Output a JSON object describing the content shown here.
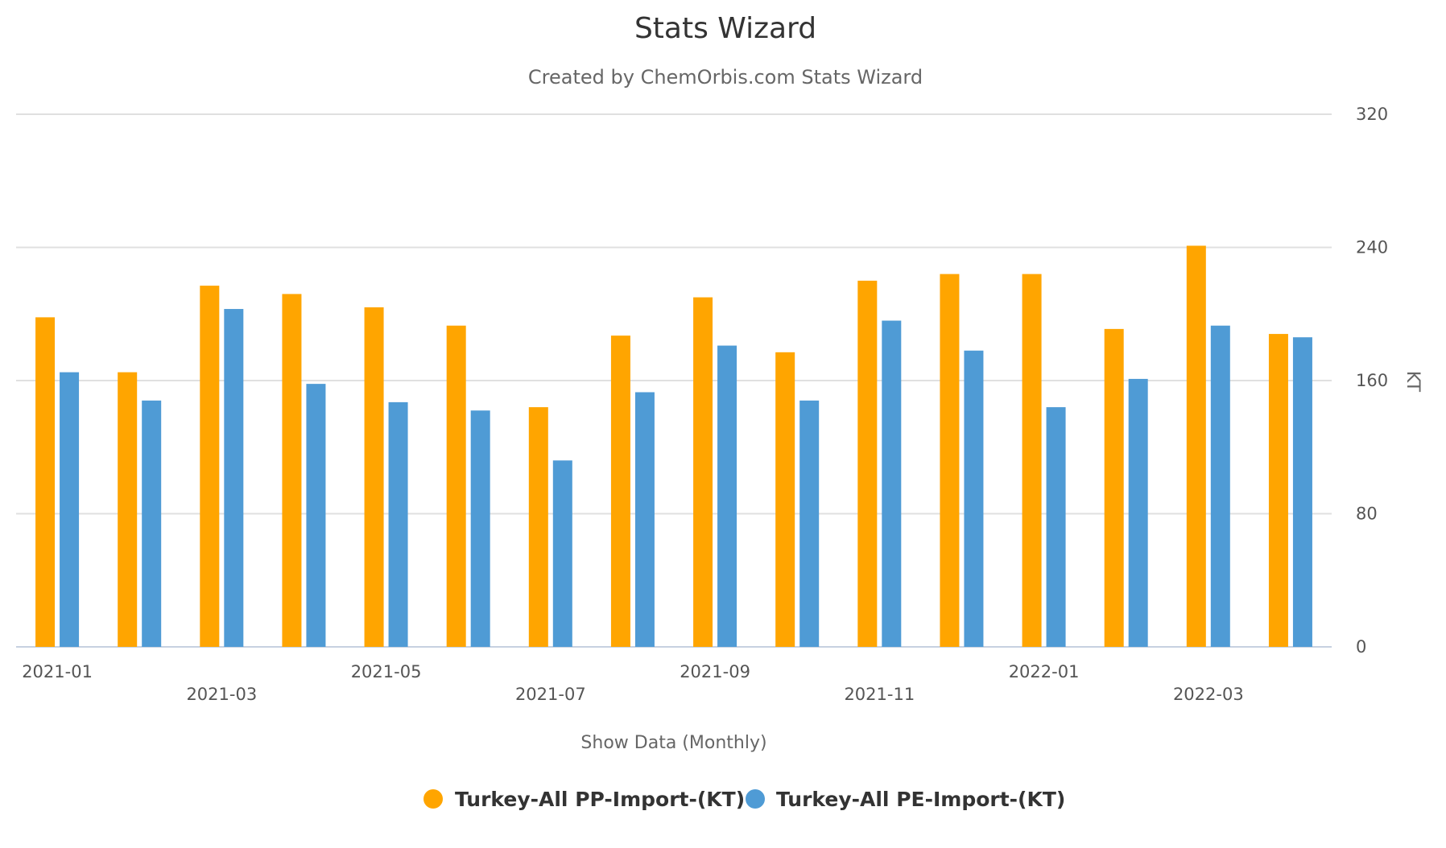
{
  "chart_data": {
    "type": "bar",
    "title": "Stats Wizard",
    "subtitle": "Created by ChemOrbis.com Stats Wizard",
    "xlabel": "Show Data (Monthly)",
    "ylabel": "KT",
    "ylim": [
      0,
      320
    ],
    "yticks": [
      0,
      80,
      160,
      240,
      320
    ],
    "grid": true,
    "legend_position": "bottom-center",
    "categories": [
      "2021-01",
      "2021-02",
      "2021-03",
      "2021-04",
      "2021-05",
      "2021-06",
      "2021-07",
      "2021-08",
      "2021-09",
      "2021-10",
      "2021-11",
      "2021-12",
      "2022-01",
      "2022-02",
      "2022-03",
      "2022-04"
    ],
    "xtick_labels": [
      "2021-01",
      "2021-03",
      "2021-05",
      "2021-07",
      "2021-09",
      "2021-11",
      "2022-01",
      "2022-03"
    ],
    "series": [
      {
        "name": "Turkey-All PP-Import-(KT)",
        "color": "#ffa500",
        "values": [
          198,
          165,
          217,
          212,
          204,
          193,
          144,
          187,
          210,
          177,
          220,
          224,
          224,
          191,
          241,
          188
        ]
      },
      {
        "name": "Turkey-All PE-Import-(KT)",
        "color": "#4f9bd5",
        "values": [
          165,
          148,
          203,
          158,
          147,
          142,
          112,
          153,
          181,
          148,
          196,
          178,
          144,
          161,
          193,
          186
        ]
      }
    ]
  }
}
